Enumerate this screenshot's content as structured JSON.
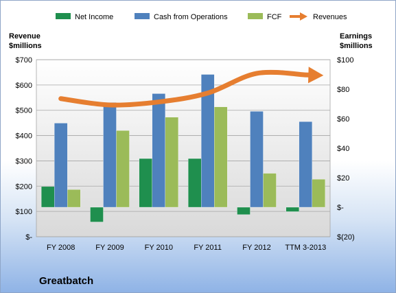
{
  "chart_data": {
    "type": "bar",
    "company": "Greatbatch",
    "categories": [
      "FY 2008",
      "FY 2009",
      "FY 2010",
      "FY 2011",
      "FY 2012",
      "TTM 3-2013"
    ],
    "left_axis": {
      "title_lines": [
        "Revenue",
        "$millions"
      ],
      "min": 0,
      "max": 700,
      "step": 100,
      "tick_labels": [
        "$-",
        "$100",
        "$200",
        "$300",
        "$400",
        "$500",
        "$600",
        "$700"
      ]
    },
    "right_axis": {
      "title_lines": [
        "Earnings",
        "$millions"
      ],
      "min": -20,
      "max": 100,
      "step": 20,
      "tick_labels": [
        "$(20)",
        "$-",
        "$20",
        "$40",
        "$60",
        "$80",
        "$100"
      ]
    },
    "series": [
      {
        "name": "Net Income",
        "axis": "right",
        "kind": "bar",
        "color": "#1f8f4e",
        "values": [
          14,
          -10,
          33,
          33,
          -5,
          -3
        ]
      },
      {
        "name": "Cash from Operations",
        "axis": "right",
        "kind": "bar",
        "color": "#4f81bd",
        "values": [
          57,
          71,
          77,
          90,
          65,
          58
        ]
      },
      {
        "name": "FCF",
        "axis": "right",
        "kind": "bar",
        "color": "#9bbb59",
        "values": [
          12,
          52,
          61,
          68,
          23,
          19
        ]
      },
      {
        "name": "Revenues",
        "axis": "left",
        "kind": "line",
        "color": "#e67e30",
        "values": [
          546,
          521,
          533,
          568,
          646,
          640
        ]
      }
    ],
    "grid": true,
    "legend_position": "top"
  }
}
